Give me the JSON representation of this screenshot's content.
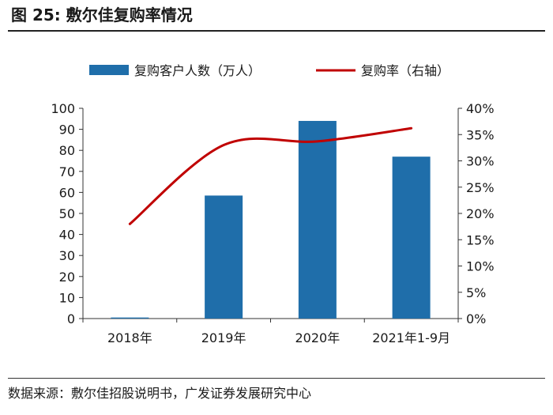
{
  "figure": {
    "title": "图 25: 敷尔佳复购率情况",
    "source": "数据来源：敷尔佳招股说明书，广发证券发展研究中心"
  },
  "colors": {
    "bar": "#1f6eaa",
    "line": "#c00000",
    "axis": "#333333",
    "text": "#1a1a1a"
  },
  "chart_data": {
    "type": "bar",
    "title": "",
    "categories": [
      "2018年",
      "2019年",
      "2020年",
      "2021年1-9月"
    ],
    "series": [
      {
        "name": "复购客户人数（万人）",
        "type": "bar",
        "axis": "left",
        "values": [
          0.5,
          58.5,
          94,
          77
        ]
      },
      {
        "name": "复购率（右轴）",
        "type": "line",
        "axis": "right",
        "values": [
          0.18,
          0.33,
          0.337,
          0.362
        ]
      }
    ],
    "y_left": {
      "lim": [
        0,
        100
      ],
      "ticks": [
        0,
        10,
        20,
        30,
        40,
        50,
        60,
        70,
        80,
        90,
        100
      ],
      "tick_labels": [
        "0",
        "10",
        "20",
        "30",
        "40",
        "50",
        "60",
        "70",
        "80",
        "90",
        "100"
      ]
    },
    "y_right": {
      "lim": [
        0,
        0.4
      ],
      "ticks": [
        0,
        0.05,
        0.1,
        0.15,
        0.2,
        0.25,
        0.3,
        0.35,
        0.4
      ],
      "tick_labels": [
        "0%",
        "5%",
        "10%",
        "15%",
        "20%",
        "25%",
        "30%",
        "35%",
        "40%"
      ]
    },
    "grid": false,
    "legend": "top"
  }
}
